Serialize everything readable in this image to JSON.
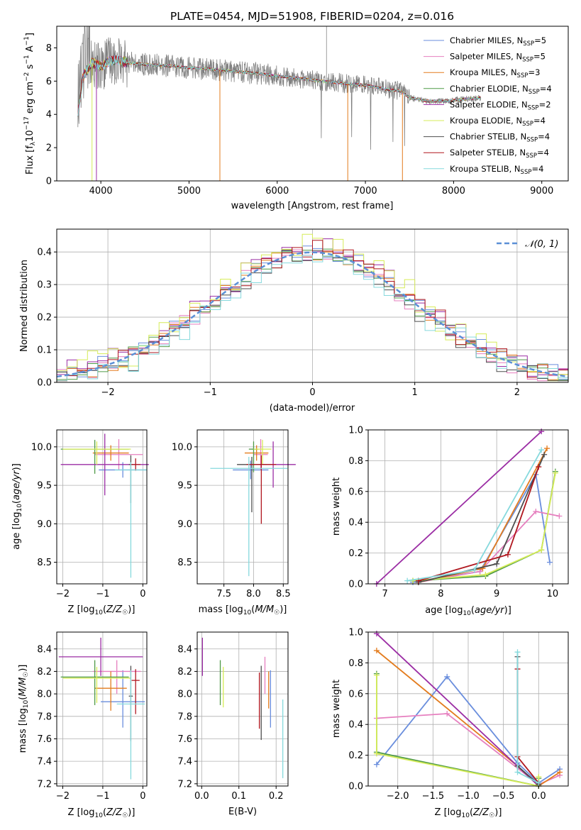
{
  "colors": {
    "Chabrier MILES": "#6a8edd",
    "Salpeter MILES": "#e67fbf",
    "Kroupa MILES": "#e37c1e",
    "Chabrier ELODIE": "#4f9a47",
    "Salpeter ELODIE": "#9b2da4",
    "Kroupa ELODIE": "#d6ec58",
    "Chabrier STELIB": "#4e4e4e",
    "Salpeter STELIB": "#b0171f",
    "Kroupa STELIB": "#86d9dd",
    "observed": "#808080",
    "gaussian": "#5b8fd6"
  },
  "chart_data": [
    {
      "type": "line",
      "title": "PLATE=0454, MJD=51908, FIBERID=0204, z=0.016",
      "xlabel": "wavelength [Angstrom, rest frame]",
      "ylabel": "Flux [f_λ 10^-17 erg cm^-2 s^-1 A^-1]",
      "xlim": [
        3500,
        9300
      ],
      "ylim": [
        0,
        9.3
      ],
      "xticks": [
        4000,
        5000,
        6000,
        7000,
        8000,
        9000
      ],
      "yticks": [
        0,
        2,
        4,
        6,
        8
      ],
      "legend_position": "top-right",
      "legend": [
        {
          "name": "Chabrier MILES",
          "nssp": "5"
        },
        {
          "name": "Salpeter MILES",
          "nssp": "5"
        },
        {
          "name": "Kroupa MILES",
          "nssp": "3"
        },
        {
          "name": "Chabrier ELODIE",
          "nssp": "4"
        },
        {
          "name": "Salpeter ELODIE",
          "nssp": "2"
        },
        {
          "name": "Kroupa ELODIE",
          "nssp": "4"
        },
        {
          "name": "Chabrier STELIB",
          "nssp": "4"
        },
        {
          "name": "Salpeter STELIB",
          "nssp": "4"
        },
        {
          "name": "Kroupa STELIB",
          "nssp": "4"
        }
      ],
      "model_continuum": {
        "x": [
          3740,
          3800,
          3900,
          4000,
          4100,
          4200,
          4300,
          4500,
          4800,
          5000,
          5200,
          5500,
          5800,
          6000,
          6200,
          6500,
          6800,
          7000,
          7200,
          7400,
          7500,
          7700,
          7900,
          8100,
          8300
        ],
        "y": [
          4.0,
          6.3,
          7.1,
          6.9,
          7.2,
          7.3,
          7.1,
          7.0,
          6.9,
          6.8,
          6.75,
          6.6,
          6.45,
          6.3,
          6.2,
          6.0,
          5.85,
          5.75,
          5.55,
          5.4,
          5.0,
          4.8,
          4.8,
          4.9,
          5.0
        ]
      }
    },
    {
      "type": "line",
      "xlabel": "(data-model)/error",
      "ylabel": "Normed distribution",
      "xlim": [
        -2.5,
        2.5
      ],
      "ylim": [
        0,
        0.47
      ],
      "xticks": [
        -2,
        -1,
        0,
        1,
        2
      ],
      "yticks": [
        0.0,
        0.1,
        0.2,
        0.3,
        0.4
      ],
      "grid": true,
      "legend_position": "top-right",
      "gaussian_label": "N(0,1)",
      "bin_centers": [
        -2.45,
        -2.35,
        -2.25,
        -2.15,
        -2.05,
        -1.95,
        -1.85,
        -1.75,
        -1.65,
        -1.55,
        -1.45,
        -1.35,
        -1.25,
        -1.15,
        -1.05,
        -0.95,
        -0.85,
        -0.75,
        -0.65,
        -0.55,
        -0.45,
        -0.35,
        -0.25,
        -0.15,
        -0.05,
        0.05,
        0.15,
        0.25,
        0.35,
        0.45,
        0.55,
        0.65,
        0.75,
        0.85,
        0.95,
        1.05,
        1.15,
        1.25,
        1.35,
        1.45,
        1.55,
        1.65,
        1.75,
        1.85,
        1.95,
        2.05,
        2.15,
        2.25,
        2.35,
        2.45
      ],
      "series": [
        {
          "name": "Chabrier MILES",
          "offset": 0.008
        },
        {
          "name": "Salpeter MILES",
          "offset": -0.012
        },
        {
          "name": "Kroupa MILES",
          "offset": 0.0
        },
        {
          "name": "Chabrier ELODIE",
          "offset": -0.005
        },
        {
          "name": "Salpeter ELODIE",
          "offset": 0.022
        },
        {
          "name": "Kroupa ELODIE",
          "offset": 0.03
        },
        {
          "name": "Chabrier STELIB",
          "offset": -0.02
        },
        {
          "name": "Salpeter STELIB",
          "offset": 0.012
        },
        {
          "name": "Kroupa STELIB",
          "offset": -0.028
        }
      ]
    },
    {
      "type": "scatter",
      "xlabel": "Z [log10(Z/Z☉)]",
      "ylabel": "age [log10(age/yr)]",
      "xlim": [
        -2.15,
        0.1
      ],
      "ylim": [
        8.22,
        10.22
      ],
      "xticks": [
        -2,
        -1,
        0
      ],
      "yticks": [
        8.5,
        9.0,
        9.5,
        10.0
      ],
      "points": [
        {
          "name": "Chabrier MILES",
          "x": -0.5,
          "xerr": 0.6,
          "y": 9.7,
          "yerr": [
            0.1,
            0.1
          ]
        },
        {
          "name": "Salpeter MILES",
          "x": -0.6,
          "xerr": 0.6,
          "y": 9.9,
          "yerr": [
            0.2,
            0.2
          ]
        },
        {
          "name": "Kroupa MILES",
          "x": -0.8,
          "xerr": 0.45,
          "y": 9.92,
          "yerr": [
            0.1,
            0.1
          ]
        },
        {
          "name": "Chabrier ELODIE",
          "x": -1.2,
          "xerr": 0.85,
          "y": 9.97,
          "yerr": [
            0.32,
            0.12
          ]
        },
        {
          "name": "Salpeter ELODIE",
          "x": -0.95,
          "xerr": 1.1,
          "y": 9.77,
          "yerr": [
            0.4,
            0.4
          ]
        },
        {
          "name": "Kroupa ELODIE",
          "x": -1.15,
          "xerr": 0.85,
          "y": 9.97,
          "yerr": [
            0.2,
            0.1
          ]
        },
        {
          "name": "Chabrier STELIB",
          "x": -0.3,
          "xerr": 0.05,
          "y": 9.77,
          "yerr": [
            0.5,
            0.12
          ]
        },
        {
          "name": "Salpeter STELIB",
          "x": -0.18,
          "xerr": 0.12,
          "y": 9.77,
          "yerr": [
            0.08,
            0.08
          ]
        },
        {
          "name": "Kroupa STELIB",
          "x": -0.3,
          "xerr": 0.4,
          "y": 9.7,
          "yerr": [
            1.4,
            0.1
          ]
        }
      ]
    },
    {
      "type": "scatter",
      "xlabel": "mass [log10(M/M☉)]",
      "ylabel": "",
      "xlim": [
        7.05,
        8.58
      ],
      "ylim": [
        8.22,
        10.22
      ],
      "xticks": [
        7.5,
        8.0,
        8.5
      ],
      "yticks": [
        8.5,
        9.0,
        9.5,
        10.0
      ],
      "points": [
        {
          "name": "Chabrier MILES",
          "x": 7.95,
          "xerr": 0.3,
          "y": 9.7,
          "yerr": [
            0.12,
            0.12
          ]
        },
        {
          "name": "Salpeter MILES",
          "x": 8.12,
          "xerr": 0.12,
          "y": 9.9,
          "yerr": [
            0.2,
            0.2
          ]
        },
        {
          "name": "Kroupa MILES",
          "x": 8.05,
          "xerr": 0.2,
          "y": 9.92,
          "yerr": [
            0.1,
            0.1
          ]
        },
        {
          "name": "Chabrier ELODIE",
          "x": 8.0,
          "xerr": 0.08,
          "y": 9.97,
          "yerr": [
            0.3,
            0.1
          ]
        },
        {
          "name": "Salpeter ELODIE",
          "x": 8.33,
          "xerr": 0.38,
          "y": 9.77,
          "yerr": [
            0.3,
            0.3
          ]
        },
        {
          "name": "Kroupa ELODIE",
          "x": 8.15,
          "xerr": 0.15,
          "y": 9.97,
          "yerr": [
            0.2,
            0.12
          ]
        },
        {
          "name": "Chabrier STELIB",
          "x": 7.97,
          "xerr": 0.25,
          "y": 9.77,
          "yerr": [
            0.62,
            0.1
          ]
        },
        {
          "name": "Salpeter STELIB",
          "x": 8.13,
          "xerr": 0.25,
          "y": 9.77,
          "yerr": [
            0.77,
            0.12
          ]
        },
        {
          "name": "Kroupa STELIB",
          "x": 7.92,
          "xerr": 0.65,
          "y": 9.72,
          "yerr": [
            1.4,
            0.15
          ]
        }
      ]
    },
    {
      "type": "line",
      "xlabel": "age [log10(age/yr)]",
      "ylabel": "mass weight",
      "xlim": [
        6.7,
        10.28
      ],
      "ylim": [
        0,
        1.0
      ],
      "xticks": [
        7,
        8,
        9,
        10
      ],
      "yticks": [
        0.0,
        0.2,
        0.4,
        0.6,
        0.8,
        1.0
      ],
      "grid": true,
      "series": [
        {
          "name": "Chabrier MILES",
          "points": [
            [
              7.5,
              0.01
            ],
            [
              8.7,
              0.08
            ],
            [
              9.7,
              0.71
            ],
            [
              9.95,
              0.14
            ]
          ]
        },
        {
          "name": "Salpeter MILES",
          "points": [
            [
              7.6,
              0.01
            ],
            [
              8.7,
              0.08
            ],
            [
              9.7,
              0.47
            ],
            [
              10.12,
              0.44
            ]
          ]
        },
        {
          "name": "Kroupa MILES",
          "points": [
            [
              7.6,
              0.01
            ],
            [
              8.75,
              0.1
            ],
            [
              9.9,
              0.88
            ]
          ]
        },
        {
          "name": "Chabrier ELODIE",
          "points": [
            [
              7.5,
              0.02
            ],
            [
              8.8,
              0.05
            ],
            [
              9.8,
              0.22
            ],
            [
              10.05,
              0.73
            ]
          ]
        },
        {
          "name": "Salpeter ELODIE",
          "points": [
            [
              6.85,
              0.0
            ],
            [
              9.8,
              0.99
            ]
          ]
        },
        {
          "name": "Kroupa ELODIE",
          "points": [
            [
              7.5,
              0.02
            ],
            [
              8.8,
              0.06
            ],
            [
              9.8,
              0.22
            ],
            [
              10.05,
              0.72
            ]
          ]
        },
        {
          "name": "Chabrier STELIB",
          "points": [
            [
              7.6,
              0.01
            ],
            [
              9.0,
              0.13
            ],
            [
              9.85,
              0.84
            ]
          ]
        },
        {
          "name": "Salpeter STELIB",
          "points": [
            [
              7.6,
              0.02
            ],
            [
              9.2,
              0.19
            ],
            [
              9.75,
              0.76
            ]
          ]
        },
        {
          "name": "Kroupa STELIB",
          "points": [
            [
              7.4,
              0.02
            ],
            [
              8.6,
              0.09
            ],
            [
              9.8,
              0.87
            ]
          ]
        }
      ]
    },
    {
      "type": "scatter",
      "xlabel": "Z [log10(Z/Z☉)]",
      "ylabel": "mass [log10(M/M☉)]",
      "xlim": [
        -2.15,
        0.1
      ],
      "ylim": [
        7.18,
        8.55
      ],
      "xticks": [
        -2,
        -1,
        0
      ],
      "yticks": [
        7.2,
        7.4,
        7.6,
        7.8,
        8.0,
        8.2,
        8.4
      ],
      "points": [
        {
          "name": "Chabrier MILES",
          "x": -0.5,
          "xerr": 0.55,
          "y": 7.93,
          "yerr": [
            0.23,
            0.28
          ]
        },
        {
          "name": "Salpeter MILES",
          "x": -0.65,
          "xerr": 0.6,
          "y": 8.2,
          "yerr": [
            0.2,
            0.1
          ]
        },
        {
          "name": "Kroupa MILES",
          "x": -0.8,
          "xerr": 0.4,
          "y": 8.05,
          "yerr": [
            0.2,
            0.15
          ]
        },
        {
          "name": "Chabrier ELODIE",
          "x": -1.2,
          "xerr": 0.85,
          "y": 8.15,
          "yerr": [
            0.25,
            0.15
          ]
        },
        {
          "name": "Salpeter ELODIE",
          "x": -1.05,
          "xerr": 1.05,
          "y": 8.33,
          "yerr": [
            0.17,
            0.17
          ]
        },
        {
          "name": "Kroupa ELODIE",
          "x": -1.15,
          "xerr": 0.85,
          "y": 8.14,
          "yerr": [
            0.22,
            0.1
          ]
        },
        {
          "name": "Chabrier STELIB",
          "x": -0.3,
          "xerr": 0.05,
          "y": 7.98,
          "yerr": [
            0.4,
            0.27
          ]
        },
        {
          "name": "Salpeter STELIB",
          "x": -0.18,
          "xerr": 0.1,
          "y": 8.12,
          "yerr": [
            0.3,
            0.1
          ]
        },
        {
          "name": "Kroupa STELIB",
          "x": -0.3,
          "xerr": 0.35,
          "y": 7.91,
          "yerr": [
            0.67,
            0.3
          ]
        }
      ]
    },
    {
      "type": "scatter",
      "xlabel": "E(B-V)",
      "ylabel": "",
      "xlim": [
        -0.012,
        0.232
      ],
      "ylim": [
        7.18,
        8.55
      ],
      "xticks": [
        0.0,
        0.1,
        0.2
      ],
      "yticks": [
        7.2,
        7.4,
        7.6,
        7.8,
        8.0,
        8.2,
        8.4
      ],
      "points": [
        {
          "name": "Chabrier MILES",
          "x": 0.185,
          "y": 7.93,
          "yerr": [
            0.23,
            0.28
          ]
        },
        {
          "name": "Salpeter MILES",
          "x": 0.17,
          "y": 8.2,
          "yerr": [
            0.2,
            0.13
          ]
        },
        {
          "name": "Kroupa MILES",
          "x": 0.18,
          "y": 8.05,
          "yerr": [
            0.18,
            0.15
          ]
        },
        {
          "name": "Chabrier ELODIE",
          "x": 0.05,
          "y": 8.1,
          "yerr": [
            0.2,
            0.2
          ]
        },
        {
          "name": "Salpeter ELODIE",
          "x": 0.002,
          "y": 8.33,
          "yerr": [
            0.17,
            0.17
          ]
        },
        {
          "name": "Kroupa ELODIE",
          "x": 0.058,
          "y": 8.06,
          "yerr": [
            0.18,
            0.18
          ]
        },
        {
          "name": "Chabrier STELIB",
          "x": 0.16,
          "y": 7.92,
          "yerr": [
            0.33,
            0.33
          ]
        },
        {
          "name": "Salpeter STELIB",
          "x": 0.155,
          "y": 7.94,
          "yerr": [
            0.25,
            0.25
          ]
        },
        {
          "name": "Kroupa STELIB",
          "x": 0.218,
          "y": 7.6,
          "yerr": [
            0.35,
            0.35
          ]
        }
      ]
    },
    {
      "type": "line",
      "xlabel": "Z [log10(Z/Z☉)]",
      "ylabel": "mass weight",
      "xlim": [
        -2.42,
        0.42
      ],
      "ylim": [
        0,
        1.0
      ],
      "xticks": [
        -2.0,
        -1.5,
        -1.0,
        -0.5,
        0.0
      ],
      "yticks": [
        0.0,
        0.2,
        0.4,
        0.6,
        0.8,
        1.0
      ],
      "grid": true,
      "series": [
        {
          "name": "Chabrier MILES",
          "points": [
            [
              -2.3,
              0.14
            ],
            [
              -1.3,
              0.71
            ],
            [
              -0.3,
              0.15
            ],
            [
              0.0,
              0.02
            ],
            [
              0.3,
              0.11
            ]
          ]
        },
        {
          "name": "Salpeter MILES",
          "points": [
            [
              -2.3,
              0.44
            ],
            [
              -1.3,
              0.47
            ],
            [
              0.0,
              0.01
            ],
            [
              0.3,
              0.07
            ]
          ]
        },
        {
          "name": "Kroupa MILES",
          "points": [
            [
              -2.3,
              0.88
            ],
            [
              -0.3,
              0.13
            ],
            [
              0.0,
              0.0
            ],
            [
              0.3,
              0.09
            ]
          ]
        },
        {
          "name": "Chabrier ELODIE",
          "points": [
            [
              -2.3,
              0.73
            ],
            [
              -2.3,
              0.22
            ],
            [
              0.0,
              0.0
            ],
            [
              0.0,
              0.05
            ]
          ]
        },
        {
          "name": "Salpeter ELODIE",
          "points": [
            [
              -2.3,
              0.99
            ],
            [
              0.0,
              0.0
            ]
          ]
        },
        {
          "name": "Kroupa ELODIE",
          "points": [
            [
              -2.3,
              0.72
            ],
            [
              -2.3,
              0.21
            ],
            [
              0.0,
              0.0
            ],
            [
              0.0,
              0.06
            ]
          ]
        },
        {
          "name": "Chabrier STELIB",
          "points": [
            [
              -0.3,
              0.84
            ],
            [
              -0.3,
              0.13
            ],
            [
              0.0,
              0.01
            ],
            [
              0.0,
              0.02
            ]
          ]
        },
        {
          "name": "Salpeter STELIB",
          "points": [
            [
              -0.3,
              0.76
            ],
            [
              -0.3,
              0.19
            ],
            [
              0.0,
              0.02
            ]
          ]
        },
        {
          "name": "Kroupa STELIB",
          "points": [
            [
              -0.3,
              0.87
            ],
            [
              -0.3,
              0.09
            ],
            [
              0.0,
              0.02
            ]
          ]
        }
      ]
    }
  ]
}
